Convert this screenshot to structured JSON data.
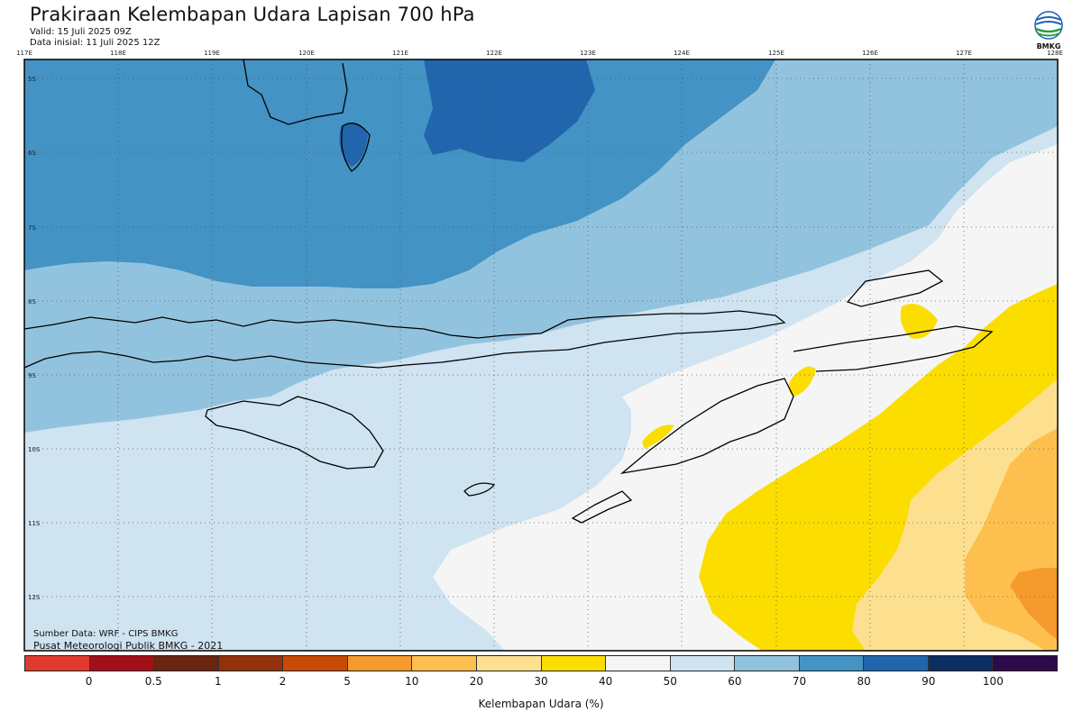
{
  "header": {
    "title": "Prakiraan Kelembapan Udara Lapisan 700 hPa",
    "valid": "Valid: 15 Juli 2025 09Z",
    "init": "Data inisial: 11 Juli 2025 12Z"
  },
  "logo": {
    "text": "BMKG",
    "icon": "bmkg-logo-icon"
  },
  "map": {
    "x_ticks": [
      "117E",
      "118E",
      "119E",
      "120E",
      "121E",
      "122E",
      "123E",
      "124E",
      "125E",
      "126E",
      "127E",
      "128E"
    ],
    "y_ticks": [
      "5S",
      "6S",
      "7S",
      "8S",
      "9S",
      "10S",
      "11S",
      "12S"
    ],
    "region": "Nusa Tenggara",
    "grid": "dotted"
  },
  "legend": {
    "title": "Kelembapan Udara (%)",
    "labels": [
      "0",
      "0.5",
      "1",
      "2",
      "5",
      "10",
      "20",
      "30",
      "40",
      "50",
      "60",
      "70",
      "80",
      "90",
      "100"
    ],
    "colors": [
      "#e03a2e",
      "#a11018",
      "#6b2410",
      "#93310a",
      "#c84a05",
      "#f59a2c",
      "#fdc04f",
      "#fde08f",
      "#fbdd00",
      "#f5f5f5",
      "#cfe3f0",
      "#92c3de",
      "#4393c4",
      "#2165ad",
      "#0b2f63",
      "#2d0a4a"
    ]
  },
  "credits": {
    "source": "Sumber Data: WRF - CIPS BMKG",
    "org": "Pusat Meteorologi Publik BMKG - 2021"
  }
}
